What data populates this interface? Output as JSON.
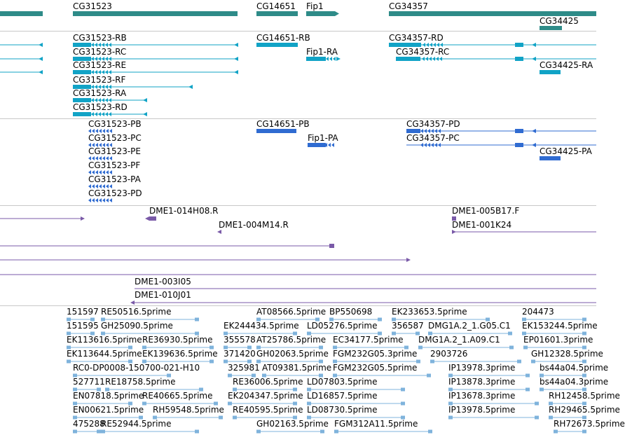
{
  "colors": {
    "gene": "#2e8b88",
    "transcript": "#11a3c6",
    "protein": "#2f6bd1",
    "clone": "#7a5aa8",
    "est": "#7fb3dc",
    "separator": "#c8c8c8"
  },
  "tracks": [
    {
      "id": "genes",
      "features": [
        {
          "label": "CG31523"
        },
        {
          "label": "CG14651"
        },
        {
          "label": "Fip1"
        },
        {
          "label": "CG34357"
        },
        {
          "label": "CG34425"
        }
      ]
    },
    {
      "id": "transcripts",
      "features": [
        {
          "label": "CG31523-RB"
        },
        {
          "label": "CG31523-RC"
        },
        {
          "label": "CG31523-RE"
        },
        {
          "label": "CG31523-RF"
        },
        {
          "label": "CG31523-RA"
        },
        {
          "label": "CG31523-RD"
        },
        {
          "label": "CG14651-RB"
        },
        {
          "label": "Fip1-RA"
        },
        {
          "label": "CG34357-RD"
        },
        {
          "label": "CG34357-RC"
        },
        {
          "label": "CG34425-RA"
        }
      ]
    },
    {
      "id": "proteins",
      "features": [
        {
          "label": "CG31523-PB"
        },
        {
          "label": "CG31523-PC"
        },
        {
          "label": "CG31523-PE"
        },
        {
          "label": "CG31523-PF"
        },
        {
          "label": "CG31523-PA"
        },
        {
          "label": "CG31523-PD"
        },
        {
          "label": "CG14651-PB"
        },
        {
          "label": "Fip1-PA"
        },
        {
          "label": "CG34357-PD"
        },
        {
          "label": "CG34357-PC"
        },
        {
          "label": "CG34425-PA"
        }
      ]
    },
    {
      "id": "clones",
      "features": [
        {
          "label": "DME1-014H08.R"
        },
        {
          "label": "DME1-004M14.R"
        },
        {
          "label": "DME1-005B17.F"
        },
        {
          "label": "DME1-001K24"
        },
        {
          "label": "DME1-003I05"
        },
        {
          "label": "DME1-010J01"
        }
      ]
    },
    {
      "id": "ests",
      "features": [
        {
          "label": "151597"
        },
        {
          "label": "RE50516.5prime"
        },
        {
          "label": "AT08566.5prime"
        },
        {
          "label": "BP550698"
        },
        {
          "label": "EK233653.5prime"
        },
        {
          "label": "204473"
        },
        {
          "label": "151595"
        },
        {
          "label": "GH25090.5prime"
        },
        {
          "label": "EK244434.5prime"
        },
        {
          "label": "LD05276.5prime"
        },
        {
          "label": "356587"
        },
        {
          "label": "DMG1A.2_1.G05.C1"
        },
        {
          "label": "EK153244.5prime"
        },
        {
          "label": "EK113616.5prime"
        },
        {
          "label": "RE36930.5prime"
        },
        {
          "label": "355578"
        },
        {
          "label": "AT25786.5prime"
        },
        {
          "label": "EC34177.5prime"
        },
        {
          "label": "DMG1A.2_1.A09.C1"
        },
        {
          "label": "EP01601.3prime"
        },
        {
          "label": "EK113644.5prime"
        },
        {
          "label": "EK139636.5prime"
        },
        {
          "label": "371420"
        },
        {
          "label": "GH02063.5prime"
        },
        {
          "label": "FGM232G05.3prime"
        },
        {
          "label": "2903726"
        },
        {
          "label": "GH12328.5prime"
        },
        {
          "label": "RC0-DP0008-150700-021-H10"
        },
        {
          "label": "325981"
        },
        {
          "label": "AT09381.5prime"
        },
        {
          "label": "FGM232G05.5prime"
        },
        {
          "label": "IP13978.3prime"
        },
        {
          "label": "bs44a04.5prime"
        },
        {
          "label": "527711"
        },
        {
          "label": "RE18758.5prime"
        },
        {
          "label": "RE36006.5prime"
        },
        {
          "label": "LD07803.5prime"
        },
        {
          "label": "IP13878.3prime"
        },
        {
          "label": "bs44a04.3prime"
        },
        {
          "label": "EN07818.5prime"
        },
        {
          "label": "RE40665.5prime"
        },
        {
          "label": "EK204347.5prime"
        },
        {
          "label": "LD16857.5prime"
        },
        {
          "label": "IP13678.3prime"
        },
        {
          "label": "RH12458.5prime"
        },
        {
          "label": "EN00621.5prime"
        },
        {
          "label": "RH59548.5prime"
        },
        {
          "label": "RE40595.5prime"
        },
        {
          "label": "LD08730.5prime"
        },
        {
          "label": "IP13978.5prime"
        },
        {
          "label": "RH29465.5prime"
        },
        {
          "label": "475288"
        },
        {
          "label": "RE52944.5prime"
        },
        {
          "label": "GH02163.5prime"
        },
        {
          "label": "FGM312A11.5prime"
        },
        {
          "label": "RH72673.5prime"
        }
      ]
    }
  ]
}
